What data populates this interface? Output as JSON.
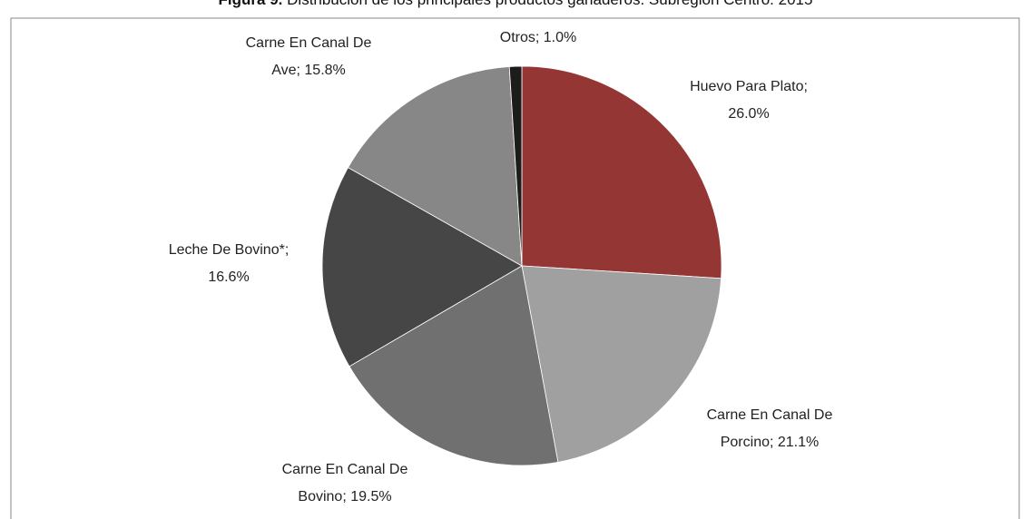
{
  "chart_data": {
    "type": "pie",
    "title_prefix": "Figura 9.",
    "title": "Distribución de los principales productos ganaderos. Subregión Centro. 2015",
    "categories": [
      "Huevo Para Plato; 26.0%",
      "Carne En Canal De Porcino; 21.1%",
      "Carne En Canal De Bovino; 19.5%",
      "Leche De Bovino*; 16.6%",
      "Carne En Canal De Ave; 15.8%",
      "Otros; 1.0%"
    ],
    "values": [
      26.0,
      21.1,
      19.5,
      16.6,
      15.8,
      1.0
    ],
    "colors": [
      "#943634",
      "#a0a0a0",
      "#707070",
      "#464646",
      "#878787",
      "#1c1c1c"
    ]
  }
}
